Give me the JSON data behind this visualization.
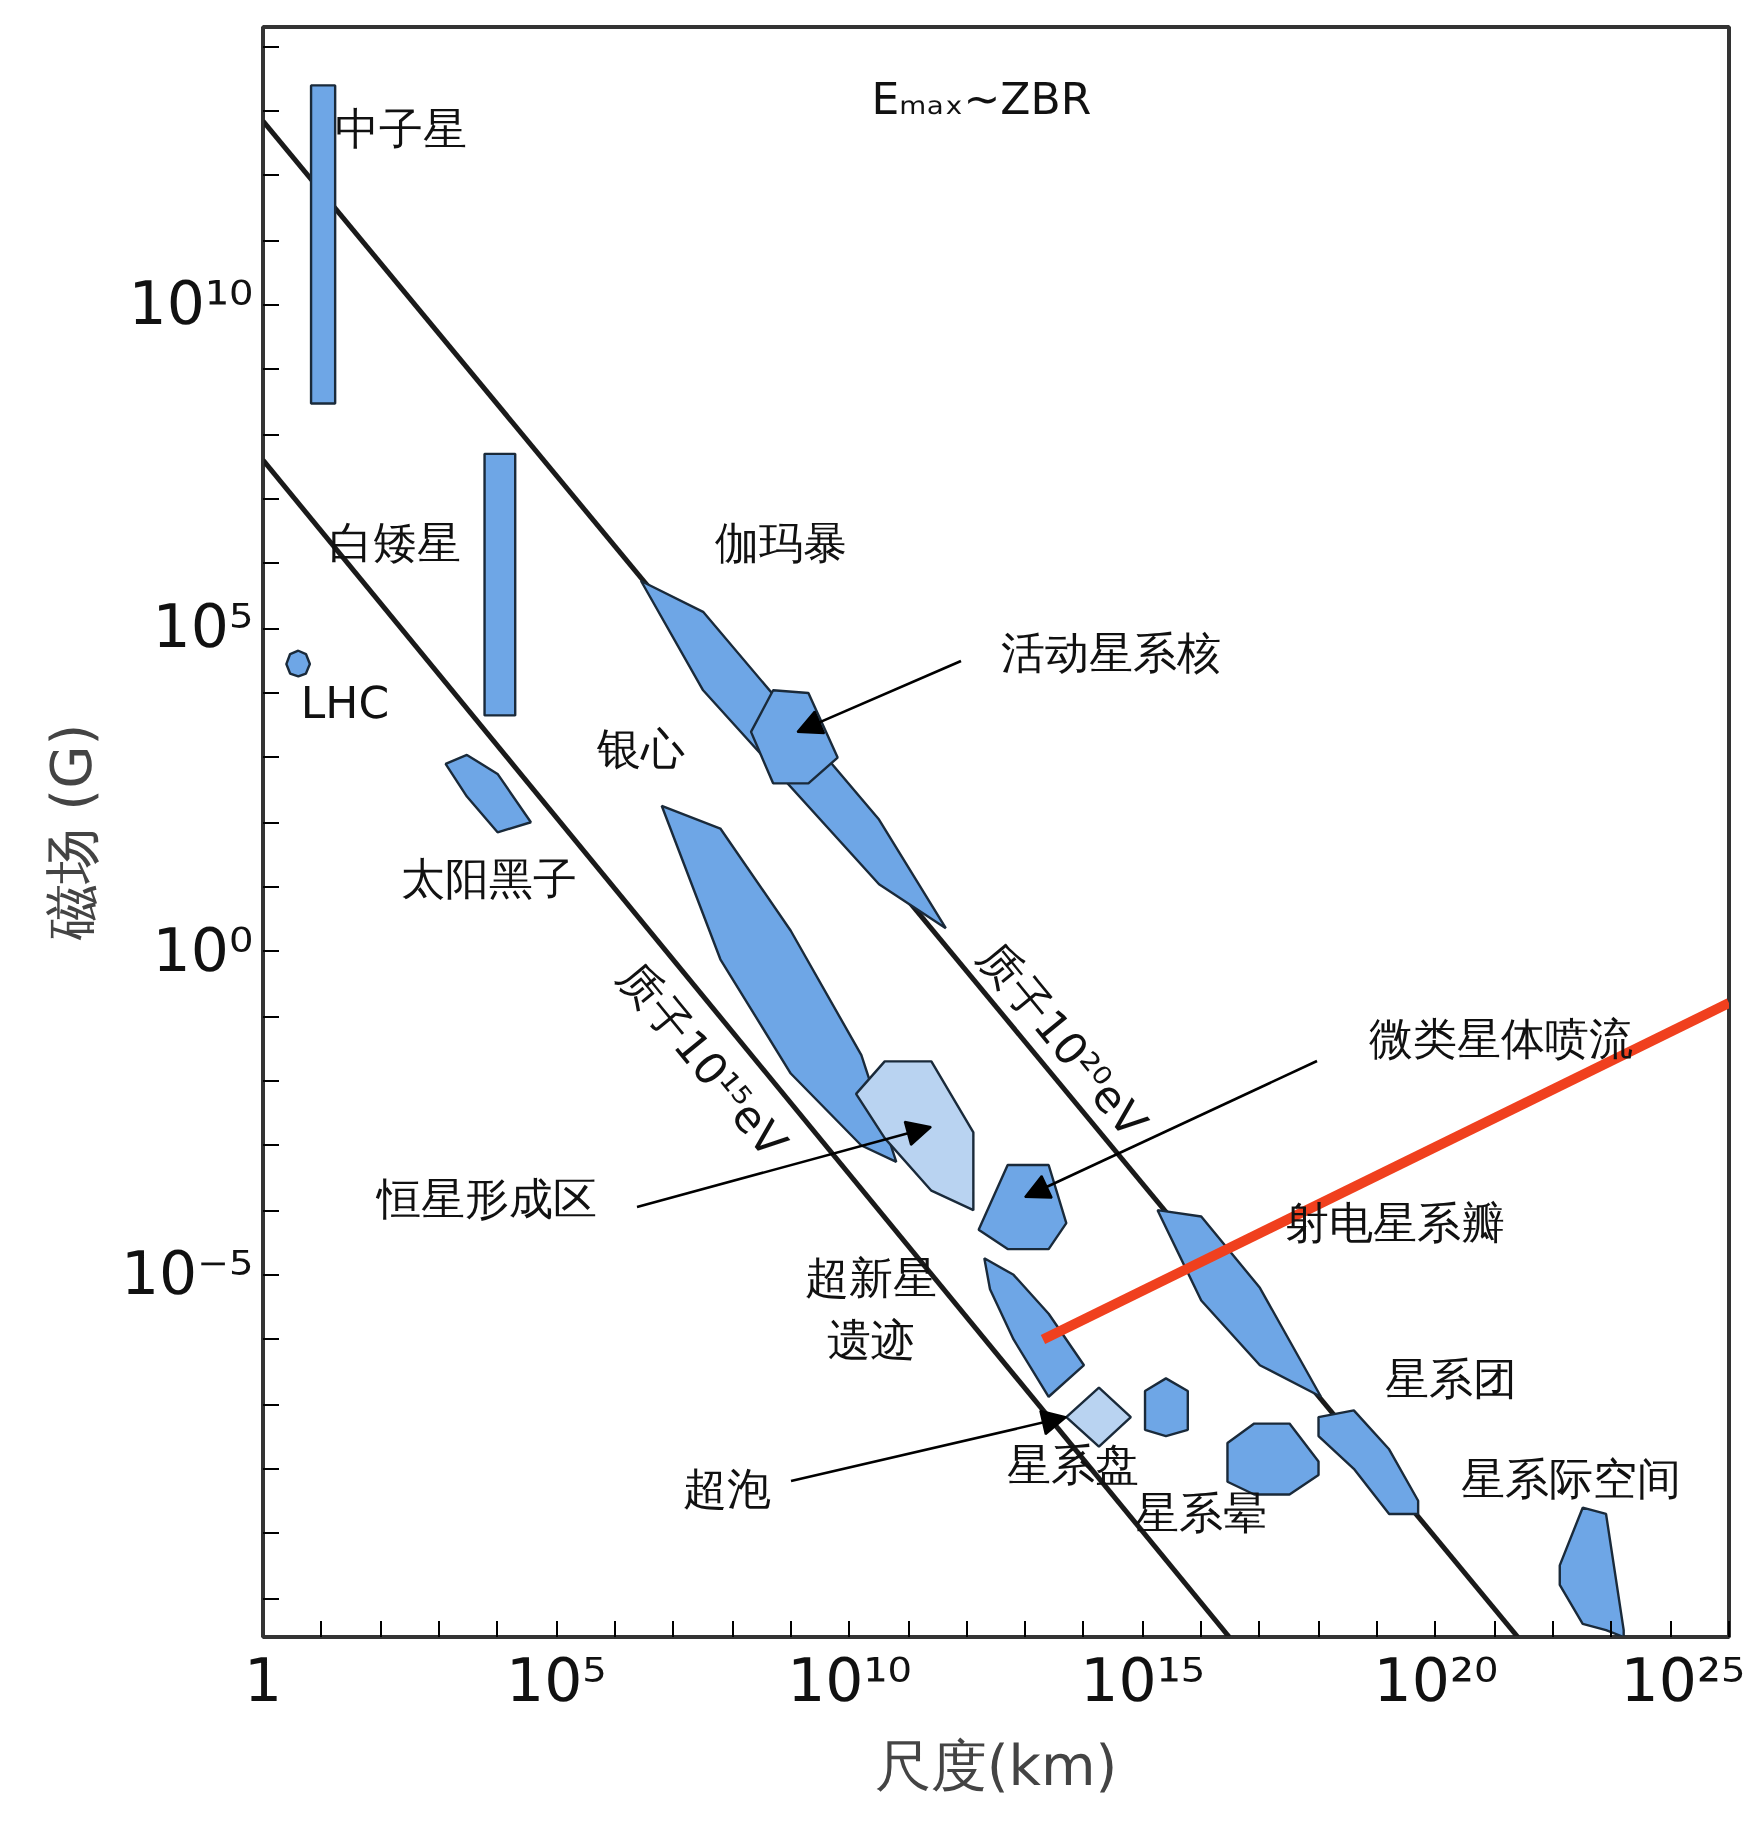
{
  "chart_data": {
    "type": "area",
    "title": "Eₘₐₓ~ZBR",
    "xlabel": "尺度(km)",
    "ylabel": "磁场 (G)",
    "log": "xy",
    "xlim": [
      1,
      1e+25
    ],
    "ylim": [
      2.5e-11,
      200000000000000.0
    ],
    "xticks": [
      {
        "value": 1,
        "label": "1"
      },
      {
        "value": 10,
        "label": null
      },
      {
        "value": 100,
        "label": null
      },
      {
        "value": 1000.0,
        "label": null
      },
      {
        "value": 10000.0,
        "label": null
      },
      {
        "value": 100000.0,
        "label": "10⁵"
      },
      {
        "value": 1000000.0,
        "label": null
      },
      {
        "value": 10000000.0,
        "label": null
      },
      {
        "value": 100000000.0,
        "label": null
      },
      {
        "value": 1000000000.0,
        "label": null
      },
      {
        "value": 10000000000.0,
        "label": "10¹⁰"
      },
      {
        "value": 100000000000.0,
        "label": null
      },
      {
        "value": 1000000000000.0,
        "label": null
      },
      {
        "value": 10000000000000.0,
        "label": null
      },
      {
        "value": 100000000000000.0,
        "label": null
      },
      {
        "value": 1000000000000000.0,
        "label": "10¹⁵"
      },
      {
        "value": 1e+16,
        "label": null
      },
      {
        "value": 1e+17,
        "label": null
      },
      {
        "value": 1e+18,
        "label": null
      },
      {
        "value": 1e+19,
        "label": null
      },
      {
        "value": 1e+20,
        "label": "10²⁰"
      },
      {
        "value": 1e+21,
        "label": null
      },
      {
        "value": 1e+22,
        "label": null
      },
      {
        "value": 1e+23,
        "label": null
      },
      {
        "value": 1e+24,
        "label": null
      },
      {
        "value": 1e+25,
        "label": "10²⁵"
      }
    ],
    "yticks": [
      {
        "value": 1e-10,
        "label": null
      },
      {
        "value": 1e-09,
        "label": null
      },
      {
        "value": 1e-08,
        "label": null
      },
      {
        "value": 1e-07,
        "label": null
      },
      {
        "value": 1e-06,
        "label": null
      },
      {
        "value": 1e-05,
        "label": "10⁻⁵"
      },
      {
        "value": 0.0001,
        "label": null
      },
      {
        "value": 0.001,
        "label": null
      },
      {
        "value": 0.01,
        "label": null
      },
      {
        "value": 0.1,
        "label": null
      },
      {
        "value": 1,
        "label": "10⁰"
      },
      {
        "value": 10,
        "label": null
      },
      {
        "value": 100,
        "label": null
      },
      {
        "value": 1000.0,
        "label": null
      },
      {
        "value": 10000.0,
        "label": null
      },
      {
        "value": 100000.0,
        "label": "10⁵"
      },
      {
        "value": 1000000.0,
        "label": null
      },
      {
        "value": 10000000.0,
        "label": null
      },
      {
        "value": 100000000.0,
        "label": null
      },
      {
        "value": 1000000000.0,
        "label": null
      },
      {
        "value": 10000000000.0,
        "label": "10¹⁰"
      },
      {
        "value": 100000000000.0,
        "label": null
      },
      {
        "value": 1000000000000.0,
        "label": null
      },
      {
        "value": 10000000000000.0,
        "label": null
      },
      {
        "value": 100000000000000.0,
        "label": null
      }
    ],
    "series": [
      {
        "type": "line",
        "color": "#1a1a1a",
        "x": [
          1,
          2.5e+21
        ],
        "values": [
          7000000000000.0,
          2.5e-11
        ]
      },
      {
        "type": "line",
        "color": "#1a1a1a",
        "x": [
          1,
          3e+16
        ],
        "values": [
          40000000.0,
          2.5e-11
        ]
      },
      {
        "color": "#6ea6e6",
        "x": [
          6.6,
          17,
          17,
          6.6
        ],
        "values": [
          25000000000000.0,
          25000000000000.0,
          300000000.0,
          300000000.0
        ]
      },
      {
        "color": "#6ea6e6",
        "x": [
          6000.0,
          20000.0,
          20000.0,
          6000.0
        ],
        "values": [
          50000000.0,
          50000000.0,
          4500.0,
          4500.0
        ]
      },
      {
        "color": "#6ea6e6",
        "x": [
          2.5,
          2.9,
          4,
          5.4,
          6.3,
          5.4,
          4,
          2.9
        ],
        "values": [
          28000.0,
          40000.0,
          45000.0,
          40000.0,
          28000.0,
          20000.0,
          18000.0,
          20000.0
        ]
      },
      {
        "color": "#6ea6e6",
        "x": [
          1300.0,
          3000.0,
          10000.0,
          37000.0,
          10000.0,
          3000.0
        ],
        "values": [
          800,
          1100,
          560,
          100,
          70,
          250
        ]
      },
      {
        "color": "#6ea6e6",
        "x": [
          2800000.0,
          32000000.0,
          32000000000.0,
          440000000000.0,
          32000000000.0,
          32000000.0
        ],
        "values": [
          540000.0,
          180000.0,
          110,
          2.3,
          11,
          11000.0
        ]
      },
      {
        "color": "#6ea6e6",
        "x": [
          210000000.0,
          500000000.0,
          2000000000.0,
          6300000000.0,
          2000000000.0,
          500000000.0
        ],
        "values": [
          2500,
          11000.0,
          10000.0,
          1000,
          400,
          400
        ]
      },
      {
        "color": "#6ea6e6",
        "x": [
          6300000.0,
          63000000.0,
          1000000000.0,
          16000000000.0,
          63000000000.0,
          16000000000.0,
          1000000000.0,
          63000000.0
        ],
        "values": [
          180,
          80,
          2.1,
          0.025,
          0.00056,
          0.001,
          0.013,
          0.76
        ]
      },
      {
        "color": "#b9d3f1",
        "x": [
          13000000000.0,
          40000000000.0,
          250000000000.0,
          1300000000000.0,
          1300000000000.0,
          250000000000.0,
          40000000000.0
        ],
        "values": [
          0.0063,
          0.02,
          0.02,
          0.0016,
          0.0001,
          0.0002,
          0.0013
        ]
      },
      {
        "color": "#6ea6e6",
        "x": [
          2000000000000.0,
          6300000000000.0,
          25000000000000.0,
          100000000000000.0,
          25000000000000.0,
          6300000000000.0,
          2500000000000.0
        ],
        "values": [
          1.8e-05,
          1e-05,
          2.5e-06,
          4e-07,
          1.3e-07,
          1e-06,
          6e-06
        ]
      },
      {
        "color": "#6ea6e6",
        "x": [
          1600000000000.0,
          5000000000000.0,
          25000000000000.0,
          50000000000000.0,
          25000000000000.0,
          5000000000000.0
        ],
        "values": [
          5e-05,
          0.0005,
          0.0005,
          6.3e-05,
          2.5e-05,
          2.5e-05
        ]
      },
      {
        "color": "#b9d3f1",
        "x": [
          50000000000000.0,
          180000000000000.0,
          630000000000000.0,
          180000000000000.0
        ],
        "values": [
          6.3e-08,
          1.8e-07,
          6.3e-08,
          2.2e-08
        ]
      },
      {
        "color": "#6ea6e6",
        "x": [
          1100000000000000.0,
          2500000000000000.0,
          5900000000000000.0,
          5900000000000000.0,
          2500000000000000.0,
          1100000000000000.0
        ],
        "values": [
          1.6e-07,
          2.5e-07,
          1.6e-07,
          4e-08,
          3.2e-08,
          4e-08
        ]
      },
      {
        "color": "#6ea6e6",
        "x": [
          1800000000000000.0,
          1e+16,
          1e+17,
          1.1e+18,
          1e+17,
          1e+16
        ],
        "values": [
          0.0001,
          8e-05,
          6.3e-06,
          1.3e-07,
          4e-07,
          4e-06
        ]
      },
      {
        "color": "#6ea6e6",
        "x": [
          1e+18,
          4e+18,
          1.6e+19,
          5e+19,
          5e+19,
          1.6e+19,
          4e+18,
          1e+18
        ],
        "values": [
          6.3e-08,
          8e-08,
          2e-08,
          3.2e-09,
          2e-09,
          2e-09,
          1e-08,
          3.2e-08
        ]
      },
      {
        "color": "#6ea6e6",
        "x": [
          2.8e+16,
          8e+16,
          3.2e+17,
          1e+18,
          1e+18,
          3.2e+17,
          8e+16,
          2.8e+16
        ],
        "values": [
          2.5e-08,
          5e-08,
          5e-08,
          1.3e-08,
          8e-09,
          4e-09,
          4e-09,
          6.3e-09
        ]
      },
      {
        "color": "#6ea6e6",
        "x": [
          1.3e+22,
          3.2e+22,
          8e+22,
          1.6e+23,
          1.6e+23,
          8e+22,
          3.2e+22,
          1.3e+22
        ],
        "values": [
          3.2e-10,
          2.5e-09,
          2e-09,
          3.2e-11,
          2.5e-11,
          3.2e-11,
          4e-11,
          1.6e-10
        ]
      },
      {
        "type": "line",
        "color": "#f0401e",
        "x": [
          20000000000000.0,
          1e+25
        ],
        "values": [
          1e-06,
          0.16
        ]
      }
    ],
    "annotations": [
      "中子星",
      "白矮星",
      "LHC",
      "太阳黑子",
      "伽玛暴",
      "银心",
      {
        "text": "活动星系核",
        "x": 1300000000.0,
        "y": 2500
      },
      "质子10²⁰eV",
      "质子10¹⁵eV",
      "恒星形成区",
      "微类星体喷流",
      "超新星遗迹",
      "射电星系瓣",
      "星系盘",
      {
        "text": "超泡",
        "x": 50000000000000.0,
        "y": 6.3e-08
      },
      "星系晕",
      "星系团",
      "星系际空间"
    ]
  }
}
